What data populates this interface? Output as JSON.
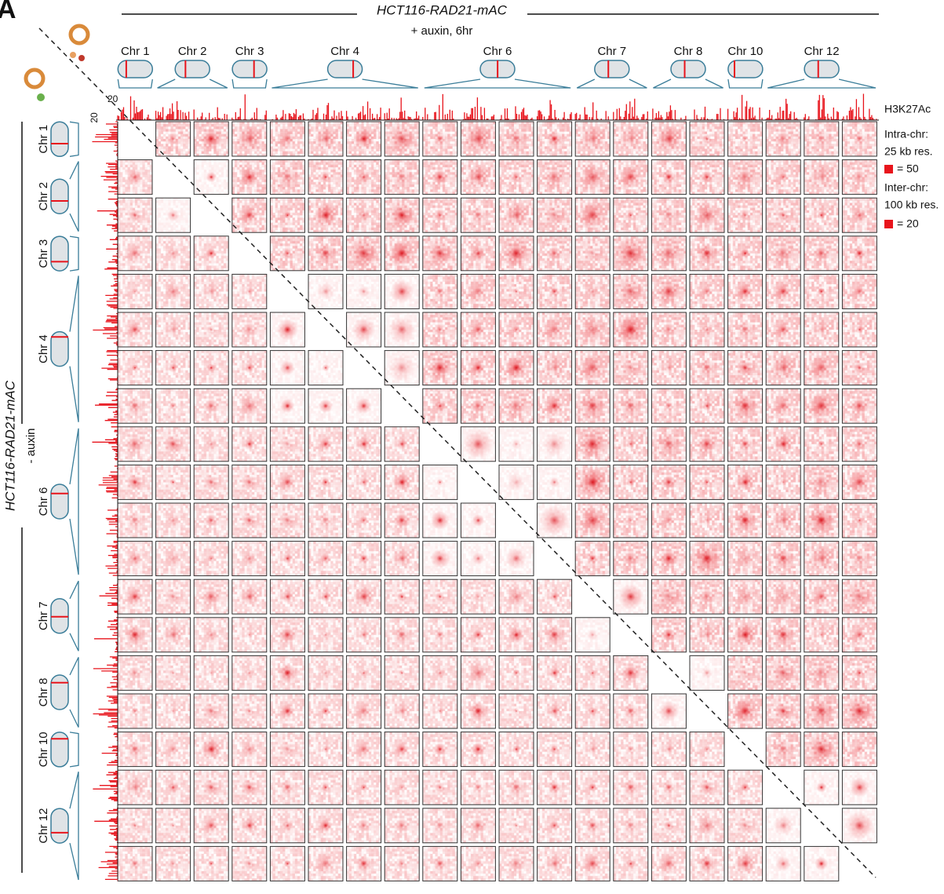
{
  "panel_label": "A",
  "top": {
    "title": "HCT116-RAD21-mAC",
    "condition": "+ auxin, 6hr"
  },
  "left": {
    "title": "HCT116-RAD21-mAC",
    "condition": "- auxin"
  },
  "chromosomes": [
    "Chr 1",
    "Chr 2",
    "Chr 3",
    "Chr 4",
    "Chr 6",
    "Chr 7",
    "Chr 8",
    "Chr 10",
    "Chr 12"
  ],
  "track": {
    "name": "H3K27Ac",
    "scale_top": "20",
    "scale_left": "20"
  },
  "legend": {
    "intra_title": "Intra-chr:",
    "intra_res": "25 kb res.",
    "intra_value": "= 50",
    "inter_title": "Inter-chr:",
    "inter_res": "100 kb res.",
    "inter_value": "= 20"
  }
}
